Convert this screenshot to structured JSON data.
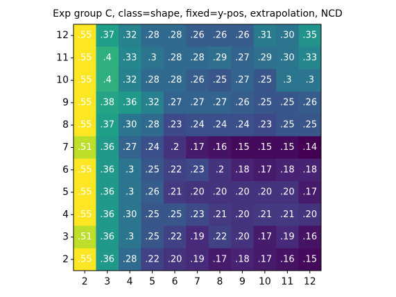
{
  "chart_data": {
    "type": "heatmap",
    "title": "Exp group C, class=shape, fixed=y-pos, extrapolation, NCD",
    "x": [
      2,
      3,
      4,
      5,
      6,
      7,
      8,
      9,
      10,
      11,
      12
    ],
    "y": [
      12,
      11,
      10,
      9,
      8,
      7,
      6,
      5,
      4,
      3,
      2
    ],
    "values": [
      [
        0.55,
        0.37,
        0.32,
        0.28,
        0.28,
        0.26,
        0.26,
        0.26,
        0.31,
        0.3,
        0.35
      ],
      [
        0.55,
        0.4,
        0.33,
        0.3,
        0.28,
        0.28,
        0.29,
        0.27,
        0.29,
        0.3,
        0.33
      ],
      [
        0.55,
        0.4,
        0.32,
        0.28,
        0.28,
        0.26,
        0.25,
        0.27,
        0.25,
        0.3,
        0.3
      ],
      [
        0.55,
        0.38,
        0.36,
        0.32,
        0.27,
        0.27,
        0.27,
        0.26,
        0.25,
        0.25,
        0.26
      ],
      [
        0.55,
        0.37,
        0.3,
        0.28,
        0.23,
        0.24,
        0.24,
        0.24,
        0.23,
        0.25,
        0.25
      ],
      [
        0.51,
        0.36,
        0.27,
        0.24,
        0.2,
        0.17,
        0.16,
        0.15,
        0.15,
        0.15,
        0.14
      ],
      [
        0.55,
        0.36,
        0.3,
        0.25,
        0.22,
        0.23,
        0.2,
        0.18,
        0.17,
        0.18,
        0.18
      ],
      [
        0.55,
        0.36,
        0.3,
        0.26,
        0.21,
        0.2,
        0.2,
        0.2,
        0.2,
        0.2,
        0.17
      ],
      [
        0.55,
        0.36,
        0.3,
        0.25,
        0.25,
        0.23,
        0.21,
        0.2,
        0.21,
        0.21,
        0.2
      ],
      [
        0.51,
        0.36,
        0.3,
        0.25,
        0.22,
        0.19,
        0.22,
        0.2,
        0.17,
        0.19,
        0.16
      ],
      [
        0.55,
        0.36,
        0.28,
        0.22,
        0.2,
        0.19,
        0.17,
        0.18,
        0.17,
        0.16,
        0.15
      ]
    ],
    "value_labels": [
      [
        ".55",
        ".37",
        ".32",
        ".28",
        ".28",
        ".26",
        ".26",
        ".26",
        ".31",
        ".30",
        ".35"
      ],
      [
        ".55",
        ".4",
        ".33",
        ".3",
        ".28",
        ".28",
        ".29",
        ".27",
        ".29",
        ".30",
        ".33"
      ],
      [
        ".55",
        ".4",
        ".32",
        ".28",
        ".28",
        ".26",
        ".25",
        ".27",
        ".25",
        ".3",
        ".3"
      ],
      [
        ".55",
        ".38",
        ".36",
        ".32",
        ".27",
        ".27",
        ".27",
        ".26",
        ".25",
        ".25",
        ".26"
      ],
      [
        ".55",
        ".37",
        ".30",
        ".28",
        ".23",
        ".24",
        ".24",
        ".24",
        ".23",
        ".25",
        ".25"
      ],
      [
        ".51",
        ".36",
        ".27",
        ".24",
        ".2",
        ".17",
        ".16",
        ".15",
        ".15",
        ".15",
        ".14"
      ],
      [
        ".55",
        ".36",
        ".3",
        ".25",
        ".22",
        ".23",
        ".2",
        ".18",
        ".17",
        ".18",
        ".18"
      ],
      [
        ".55",
        ".36",
        ".3",
        ".26",
        ".21",
        ".20",
        ".20",
        ".20",
        ".20",
        ".20",
        ".17"
      ],
      [
        ".55",
        ".36",
        ".30",
        ".25",
        ".25",
        ".23",
        ".21",
        ".20",
        ".21",
        ".21",
        ".20"
      ],
      [
        ".51",
        ".36",
        ".3",
        ".25",
        ".22",
        ".19",
        ".22",
        ".20",
        ".17",
        ".19",
        ".16"
      ],
      [
        ".55",
        ".36",
        ".28",
        ".22",
        ".20",
        ".19",
        ".17",
        ".18",
        ".17",
        ".16",
        ".15"
      ]
    ],
    "colormap": "viridis",
    "clim": [
      0.14,
      0.55
    ]
  }
}
